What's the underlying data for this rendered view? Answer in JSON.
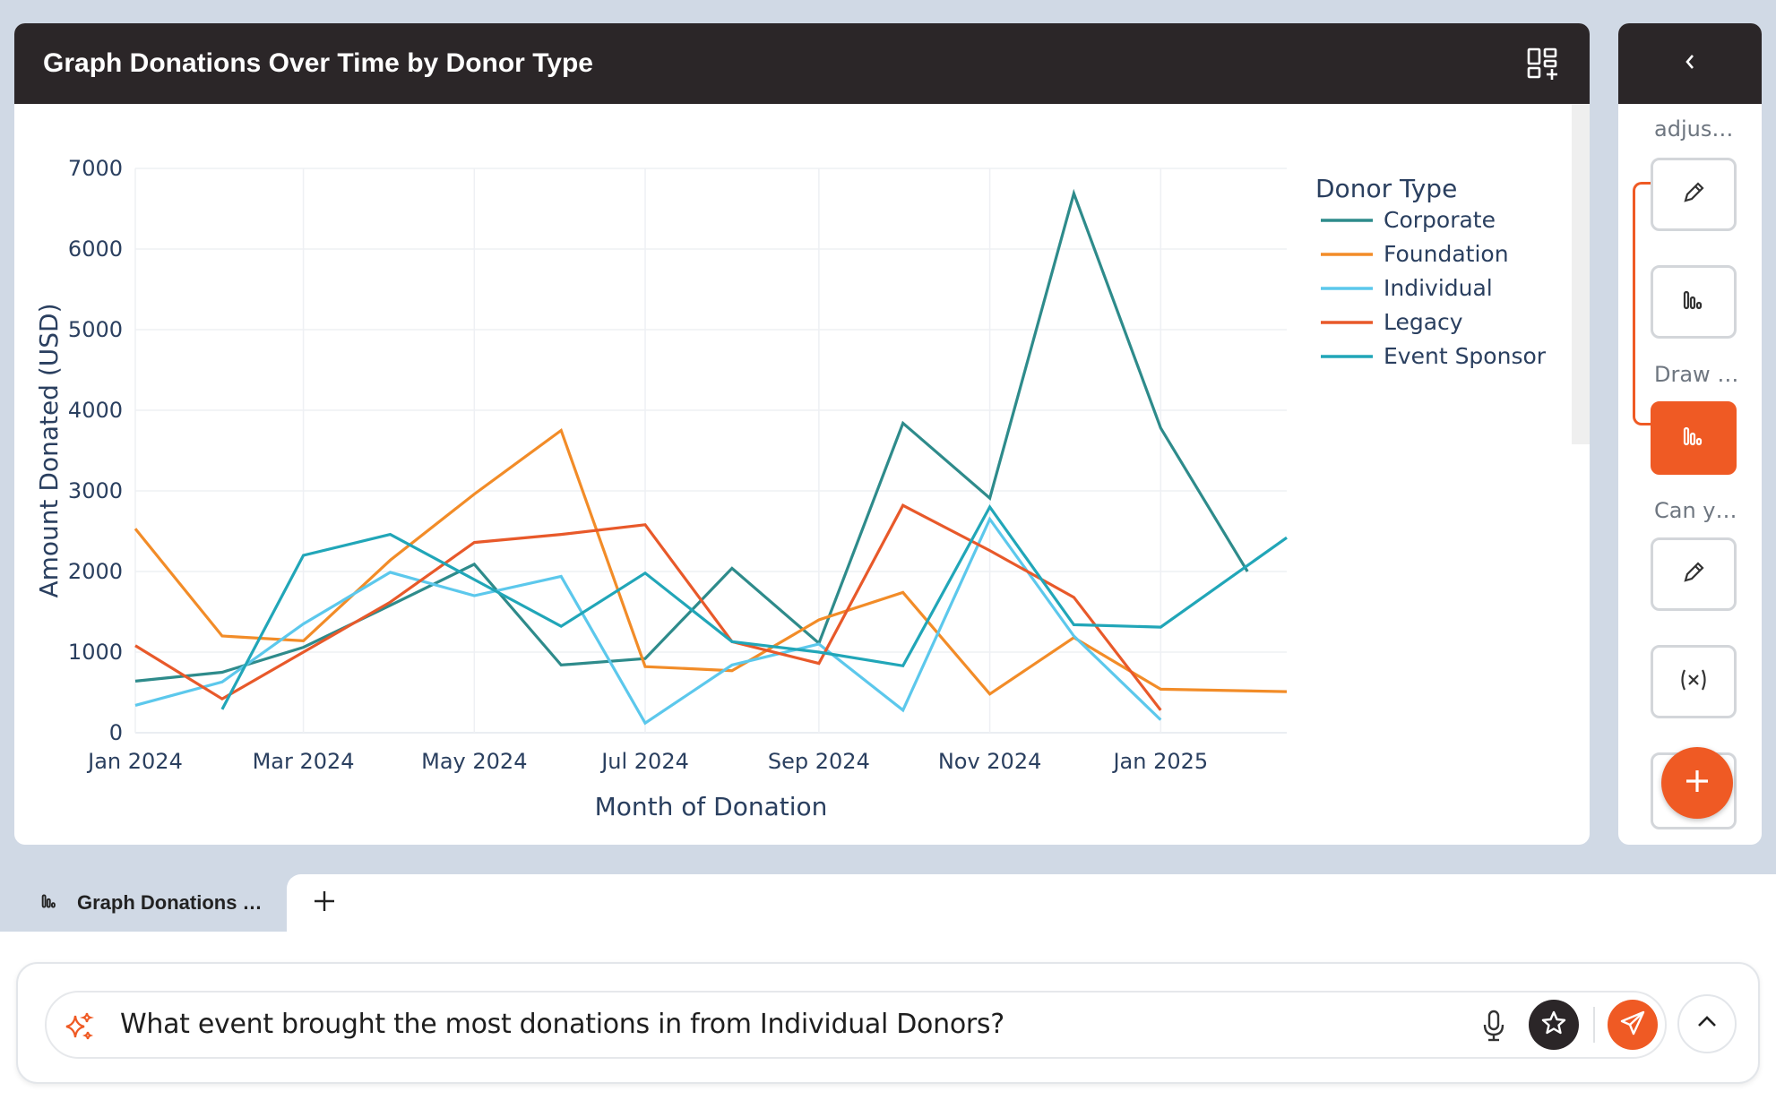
{
  "panel": {
    "title": "Graph Donations Over Time by Donor Type"
  },
  "side": {
    "labels": [
      "adjus…",
      "Draw …",
      "Can y…"
    ]
  },
  "tab": {
    "label": "Graph Donations …"
  },
  "chat": {
    "input_value": "What event brought the most donations in from Individual Donors?"
  },
  "colors": {
    "accent": "#ef5a24",
    "header": "#2b2628",
    "background": "#d0d9e5"
  },
  "chart_data": {
    "type": "line",
    "xlabel": "Month of Donation",
    "ylabel": "Amount Donated (USD)",
    "ylim": [
      0,
      7000
    ],
    "yticks": [
      0,
      1000,
      2000,
      3000,
      4000,
      5000,
      6000,
      7000
    ],
    "xticks": [
      "Jan 2024",
      "Mar 2024",
      "May 2024",
      "Jul 2024",
      "Sep 2024",
      "Nov 2024",
      "Jan 2025"
    ],
    "x_range": [
      "2024-01-01",
      "2025-02-15"
    ],
    "legend_title": "Donor Type",
    "legend_position": "top-right",
    "grid": true,
    "series": [
      {
        "name": "Corporate",
        "color": "#2e8b8b",
        "x": [
          "2024-01-01",
          "2024-02-01",
          "2024-03-01",
          "2024-04-01",
          "2024-05-01",
          "2024-06-01",
          "2024-07-01",
          "2024-08-01",
          "2024-09-01",
          "2024-10-01",
          "2024-11-01",
          "2024-12-01",
          "2025-01-01",
          "2025-02-01"
        ],
        "y": [
          640,
          750,
          1060,
          1580,
          2090,
          840,
          920,
          2040,
          1110,
          3840,
          2910,
          6690,
          3780,
          2000
        ]
      },
      {
        "name": "Foundation",
        "color": "#f28c28",
        "x": [
          "2024-01-01",
          "2024-02-01",
          "2024-03-01",
          "2024-04-01",
          "2024-05-01",
          "2024-06-01",
          "2024-07-01",
          "2024-08-01",
          "2024-09-01",
          "2024-10-01",
          "2024-11-01",
          "2024-12-01",
          "2025-01-01",
          "2025-02-15"
        ],
        "y": [
          2530,
          1200,
          1140,
          2140,
          2960,
          3750,
          820,
          770,
          1400,
          1740,
          480,
          1180,
          540,
          510
        ]
      },
      {
        "name": "Individual",
        "color": "#5cc8ec",
        "x": [
          "2024-01-01",
          "2024-02-01",
          "2024-03-01",
          "2024-04-01",
          "2024-05-01",
          "2024-06-01",
          "2024-07-01",
          "2024-08-01",
          "2024-09-01",
          "2024-10-01",
          "2024-11-01",
          "2024-12-01",
          "2025-01-01"
        ],
        "y": [
          340,
          630,
          1350,
          1990,
          1700,
          1940,
          120,
          840,
          1100,
          280,
          2650,
          1200,
          160
        ]
      },
      {
        "name": "Legacy",
        "color": "#e8592a",
        "x": [
          "2024-01-01",
          "2024-02-01",
          "2024-03-01",
          "2024-04-01",
          "2024-05-01",
          "2024-06-01",
          "2024-07-01",
          "2024-08-01",
          "2024-09-01",
          "2024-10-01",
          "2024-11-01",
          "2024-12-01",
          "2025-01-01"
        ],
        "y": [
          1080,
          420,
          1000,
          1620,
          2360,
          2460,
          2580,
          1130,
          860,
          2820,
          2260,
          1680,
          280
        ]
      },
      {
        "name": "Event Sponsor",
        "color": "#21a6b8",
        "x": [
          "2024-02-01",
          "2024-03-01",
          "2024-04-01",
          "2024-05-01",
          "2024-06-01",
          "2024-07-01",
          "2024-08-01",
          "2024-09-01",
          "2024-10-01",
          "2024-11-01",
          "2024-12-01",
          "2025-01-01",
          "2025-02-15"
        ],
        "y": [
          290,
          2200,
          2460,
          1900,
          1320,
          1980,
          1130,
          1000,
          830,
          2800,
          1340,
          1310,
          2420
        ]
      }
    ]
  }
}
